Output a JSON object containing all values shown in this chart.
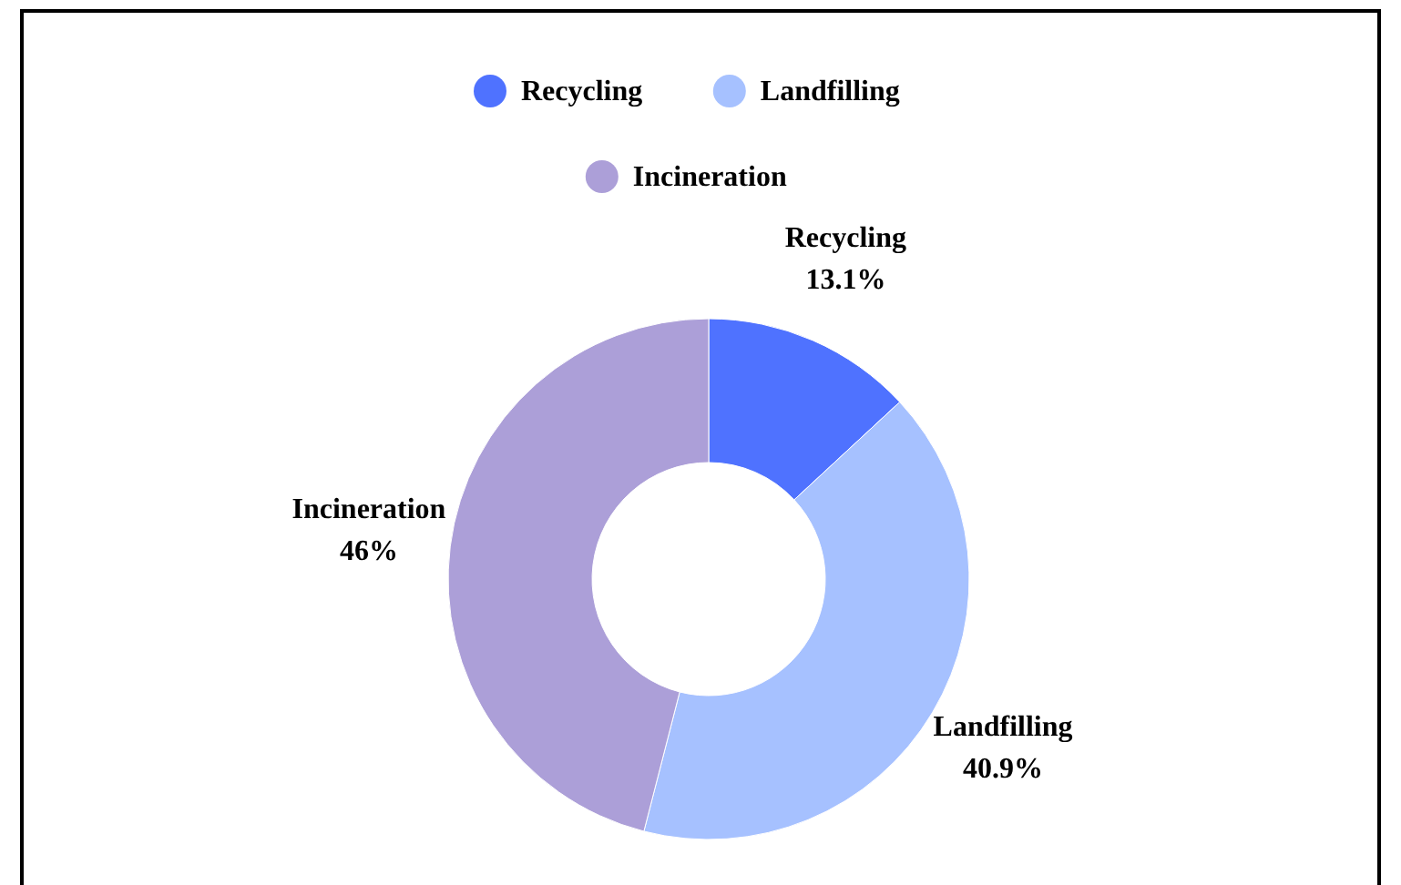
{
  "chart_data": {
    "type": "donut",
    "categories": [
      "Recycling",
      "Landfilling",
      "Incineration"
    ],
    "values": [
      13.1,
      40.9,
      46
    ],
    "colors": [
      "#4f72ff",
      "#a6c1ff",
      "#ac9fd8"
    ],
    "value_labels": [
      "13.1%",
      "40.9%",
      "46%"
    ],
    "legend": "top"
  }
}
